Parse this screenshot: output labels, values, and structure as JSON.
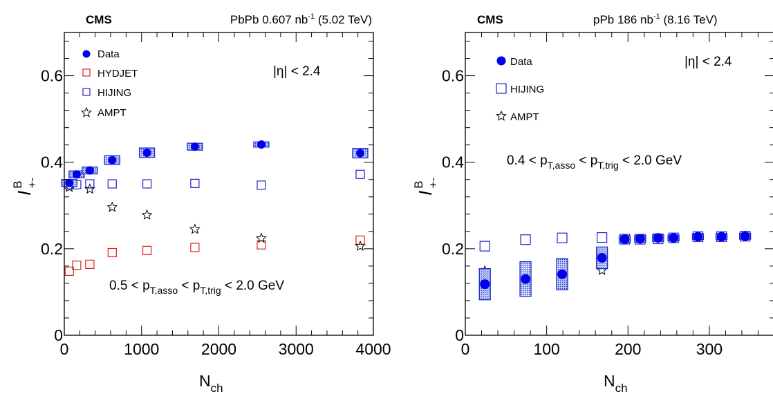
{
  "chart_data": [
    {
      "type": "scatter",
      "header": {
        "experiment": "CMS",
        "system": "PbPb 0.607 nb",
        "lumi_exp": "-1",
        "energy": " (5.02 TeV)"
      },
      "xlabel": {
        "main": "N",
        "sub": "ch"
      },
      "ylabel": {
        "main": "I",
        "sup": "B",
        "sub": "+-"
      },
      "xlim": [
        0,
        4000
      ],
      "ylim": [
        0,
        0.7
      ],
      "xticks": [
        0,
        1000,
        2000,
        3000,
        4000
      ],
      "yticks": [
        0,
        0.2,
        0.4,
        0.6
      ],
      "ytick_labels": [
        "0",
        "0.2",
        "0.4",
        "0.6"
      ],
      "annotations": {
        "eta": "|η| < 2.4",
        "cut": {
          "p1": "0.5 < p",
          "s1": "T,asso",
          "p2": " < p",
          "s2": "T,trig",
          "p3": " < 2.0 GeV"
        }
      },
      "legend": {
        "placement": "top-left",
        "entries": [
          {
            "label": "Data",
            "marker": "filled-circle",
            "color": "#0000ee"
          },
          {
            "label": "HYDJET",
            "marker": "open-square",
            "color": "#dd2222"
          },
          {
            "label": "HIJING",
            "marker": "open-square",
            "color": "#2222cc"
          },
          {
            "label": "AMPT",
            "marker": "open-star",
            "color": "#000000"
          }
        ]
      },
      "series": [
        {
          "name": "Data",
          "x": [
            65,
            160,
            330,
            620,
            1070,
            1690,
            2550,
            3830
          ],
          "y": [
            0.352,
            0.372,
            0.381,
            0.405,
            0.422,
            0.436,
            0.441,
            0.421
          ],
          "sys": [
            0.008,
            0.008,
            0.008,
            0.01,
            0.011,
            0.008,
            0.006,
            0.011
          ]
        },
        {
          "name": "HYDJET",
          "x": [
            65,
            160,
            330,
            620,
            1070,
            1690,
            2550,
            3830
          ],
          "y": [
            0.148,
            0.162,
            0.164,
            0.191,
            0.196,
            0.203,
            0.209,
            0.22
          ]
        },
        {
          "name": "HIJING",
          "x": [
            65,
            160,
            330,
            620,
            1070,
            1690,
            2550,
            3830
          ],
          "y": [
            0.348,
            0.348,
            0.35,
            0.35,
            0.35,
            0.351,
            0.347,
            0.372
          ]
        },
        {
          "name": "AMPT",
          "x": [
            65,
            330,
            620,
            1070,
            1690,
            2550,
            3830
          ],
          "y": [
            0.342,
            0.338,
            0.296,
            0.278,
            0.245,
            0.224,
            0.206
          ]
        }
      ]
    },
    {
      "type": "scatter",
      "header": {
        "experiment": "CMS",
        "system": "pPb 186 nb",
        "lumi_exp": "-1",
        "energy": " (8.16 TeV)"
      },
      "xlabel": {
        "main": "N",
        "sub": "ch"
      },
      "ylabel": {
        "main": "I",
        "sup": "B",
        "sub": "+-"
      },
      "xlim": [
        0,
        380
      ],
      "ylim": [
        0,
        0.7
      ],
      "xticks": [
        0,
        100,
        200,
        300
      ],
      "yticks": [
        0,
        0.2,
        0.4,
        0.6
      ],
      "ytick_labels": [
        "0",
        "0.2",
        "0.4",
        "0.6"
      ],
      "annotations": {
        "eta": "|η| < 2.4",
        "cut": {
          "p1": "0.4 < p",
          "s1": "T,asso",
          "p2": " < p",
          "s2": "T,trig",
          "p3": " < 2.0 GeV"
        }
      },
      "legend": {
        "placement": "top-left",
        "entries": [
          {
            "label": "Data",
            "marker": "filled-circle",
            "color": "#0000ee"
          },
          {
            "label": "HIJING",
            "marker": "open-square",
            "color": "#2222cc"
          },
          {
            "label": "AMPT",
            "marker": "open-star",
            "color": "#000000"
          }
        ]
      },
      "series": [
        {
          "name": "Data",
          "x": [
            24,
            74,
            119,
            168,
            196,
            215,
            237,
            256,
            286,
            315,
            344
          ],
          "y": [
            0.118,
            0.13,
            0.141,
            0.179,
            0.222,
            0.223,
            0.225,
            0.225,
            0.228,
            0.228,
            0.229
          ],
          "sys": [
            0.036,
            0.04,
            0.036,
            0.025,
            0.008,
            0.008,
            0.008,
            0.007,
            0.007,
            0.007,
            0.007
          ]
        },
        {
          "name": "HIJING",
          "x": [
            24,
            74,
            119,
            168,
            196,
            215,
            237,
            256,
            286,
            315,
            344
          ],
          "y": [
            0.206,
            0.221,
            0.225,
            0.226,
            0.222,
            0.222,
            0.223,
            0.225,
            0.228,
            0.228,
            0.229
          ]
        },
        {
          "name": "AMPT",
          "x": [
            24,
            74,
            119,
            168
          ],
          "y": [
            0.149,
            0.158,
            0.15,
            0.15
          ]
        }
      ]
    }
  ]
}
